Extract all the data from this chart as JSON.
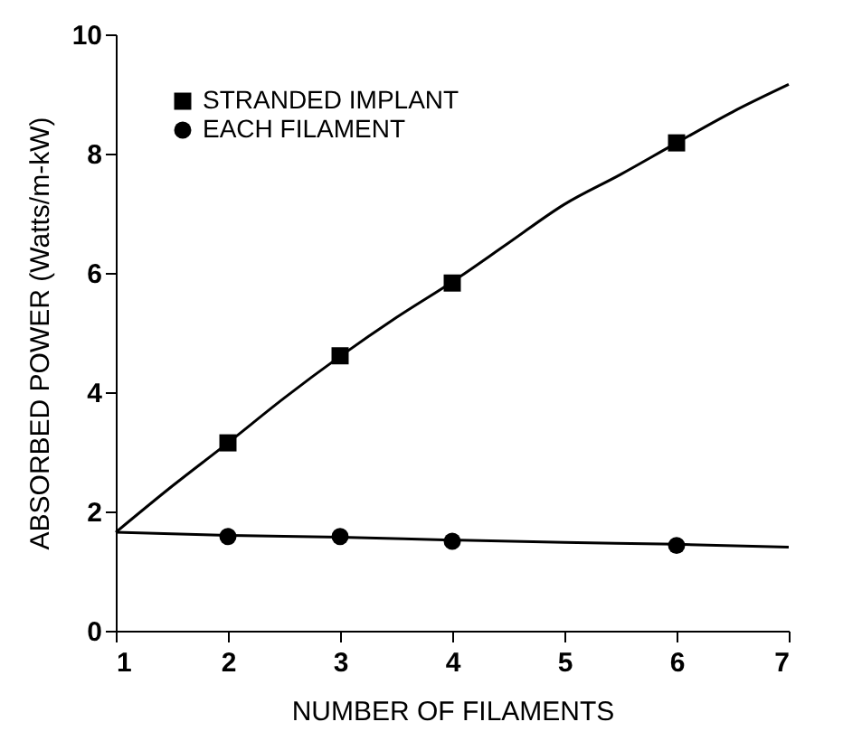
{
  "chart_data": {
    "type": "scatter",
    "xlabel": "NUMBER OF FILAMENTS",
    "ylabel": "ABSORBED POWER (Watts/m-kW)",
    "xlim": [
      1,
      7
    ],
    "ylim": [
      0,
      10
    ],
    "xticks": [
      1,
      2,
      3,
      4,
      5,
      6,
      7
    ],
    "yticks": [
      0,
      2,
      4,
      6,
      8,
      10
    ],
    "grid": false,
    "legend": "top left",
    "series": [
      {
        "name": "STRANDED IMPLANT",
        "marker": "square",
        "color": "#000000",
        "x": [
          2,
          3,
          4,
          6
        ],
        "values": [
          3.15,
          4.61,
          5.83,
          8.18
        ]
      },
      {
        "name": "EACH FILAMENT",
        "marker": "circle",
        "color": "#000000",
        "x": [
          2,
          3,
          4,
          6
        ],
        "values": [
          1.58,
          1.58,
          1.5,
          1.43
        ]
      },
      {
        "type": "line",
        "color": "#000000",
        "line_style": "solid",
        "x": [
          1,
          1.5,
          2,
          2.5,
          3,
          3.5,
          4,
          4.5,
          5,
          5.5,
          6,
          6.5,
          7
        ],
        "values": [
          1.65,
          2.42,
          3.15,
          3.9,
          4.6,
          5.25,
          5.85,
          6.5,
          7.15,
          7.65,
          8.18,
          8.7,
          9.16
        ]
      },
      {
        "type": "line",
        "color": "#000000",
        "line_style": "solid",
        "x": [
          1,
          2,
          3,
          4,
          5,
          6,
          7
        ],
        "values": [
          1.65,
          1.6,
          1.57,
          1.52,
          1.48,
          1.45,
          1.4
        ]
      }
    ]
  }
}
